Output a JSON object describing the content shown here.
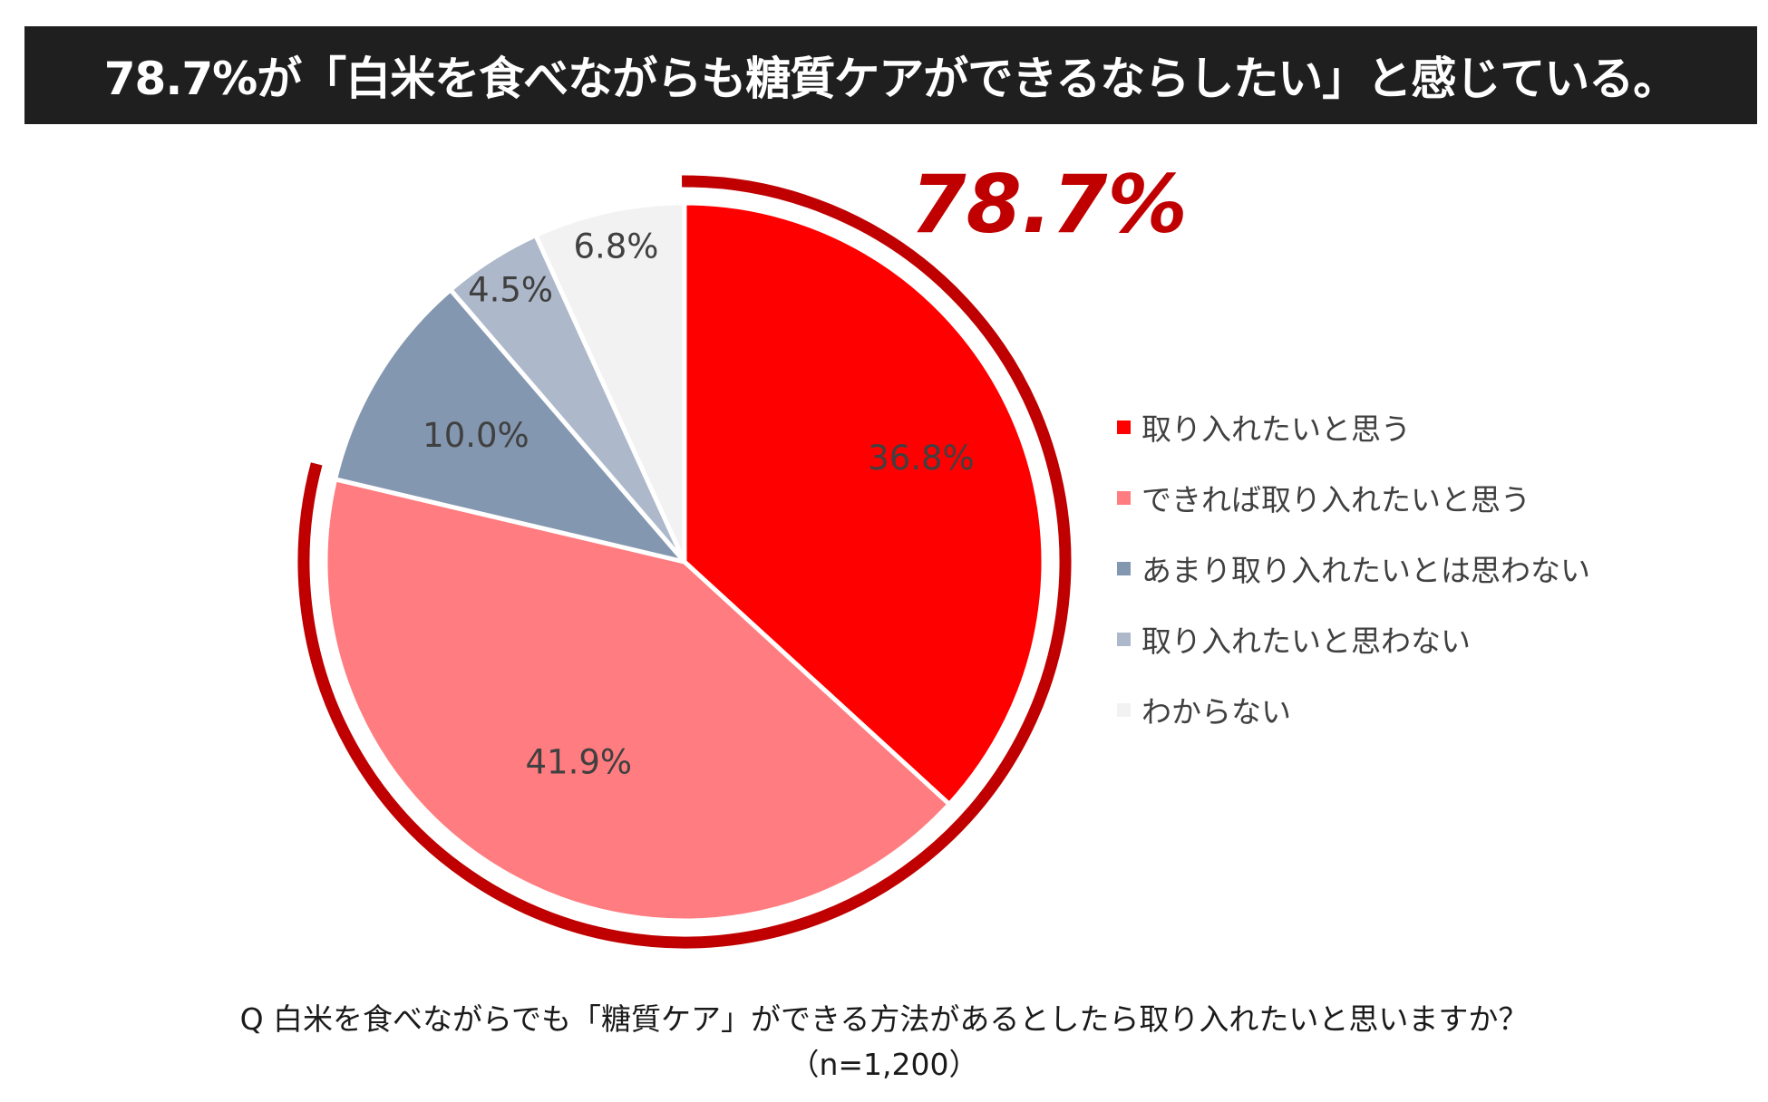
{
  "title": "78.7%が「白米を食べながらも糖質ケアができるならしたい」と感じている。",
  "highlight_total": "78.7%",
  "question": "Q 白米を食べながらでも「糖質ケア」ができる方法があるとしたら取り入れたいと思いますか？",
  "sample_size": "（n=1,200）",
  "colors": {
    "highlight_ring": "#c00000",
    "title_bg": "#1f1f1f"
  },
  "chart_data": {
    "type": "pie",
    "start": "12 o'clock",
    "direction": "clockwise",
    "categories": [
      "取り入れたいと思う",
      "できれば取り入れたいと思う",
      "あまり取り入れたいとは思わない",
      "取り入れたいと思わない",
      "わからない"
    ],
    "values": [
      36.8,
      41.9,
      10.0,
      4.5,
      6.8
    ],
    "labels": [
      "36.8%",
      "41.9%",
      "10.0%",
      "4.5%",
      "6.8%"
    ],
    "colors": [
      "#ff0000",
      "#ff7c80",
      "#8497b0",
      "#adb9ca",
      "#f2f2f2"
    ],
    "legend": "right",
    "highlighted_group": [
      0,
      1
    ]
  }
}
